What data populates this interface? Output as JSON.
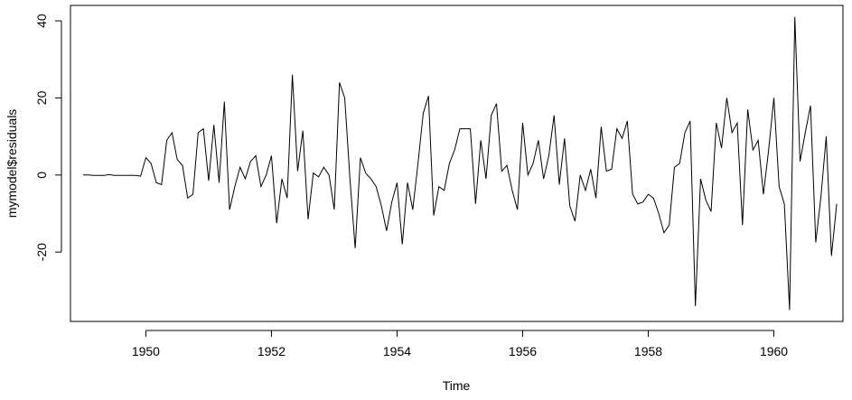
{
  "chart_data": {
    "type": "line",
    "title": "",
    "xlabel": "Time",
    "ylabel": "mymodel$residuals",
    "xlim": [
      1948.8,
      1961.1
    ],
    "ylim": [
      -38,
      44
    ],
    "x_ticks": [
      {
        "value": 1950,
        "label": "1950"
      },
      {
        "value": 1952,
        "label": "1952"
      },
      {
        "value": 1954,
        "label": "1954"
      },
      {
        "value": 1956,
        "label": "1956"
      },
      {
        "value": 1958,
        "label": "1958"
      },
      {
        "value": 1960,
        "label": "1960"
      }
    ],
    "y_ticks": [
      {
        "value": -20,
        "label": "-20"
      },
      {
        "value": 0,
        "label": "0"
      },
      {
        "value": 20,
        "label": "20"
      },
      {
        "value": 40,
        "label": "40"
      }
    ],
    "grid": false,
    "legend": "none",
    "line_color": "#000000",
    "series": [
      {
        "x_start": 1949,
        "frequency": 12,
        "values": [
          0.0,
          0.0,
          -0.1,
          -0.1,
          -0.1,
          0.1,
          -0.1,
          -0.1,
          -0.1,
          -0.1,
          -0.1,
          -0.3,
          4.5,
          3.0,
          -2.0,
          -2.5,
          9.0,
          11.0,
          4.0,
          2.5,
          -6.0,
          -5.0,
          11.0,
          12.0,
          -1.5,
          13.0,
          -2.0,
          19.0,
          -9.0,
          -3.0,
          2.0,
          -1.0,
          3.5,
          5.0,
          -3.0,
          0.0,
          5.0,
          -12.5,
          -1.0,
          -6.0,
          26.0,
          1.0,
          11.5,
          -11.5,
          0.5,
          -0.5,
          2.0,
          0.0,
          -9.0,
          24.0,
          20.0,
          -1.0,
          -19.0,
          4.5,
          0.5,
          -1.0,
          -3.0,
          -8.0,
          -14.5,
          -7.0,
          -2.0,
          -18.0,
          -2.0,
          -9.0,
          3.0,
          16.0,
          20.5,
          -10.5,
          -3.0,
          -4.0,
          3.0,
          6.5,
          12.0,
          12.0,
          12.0,
          -7.5,
          9.0,
          -1.0,
          15.5,
          18.5,
          1.0,
          2.5,
          -4.0,
          -9.0,
          13.5,
          0.0,
          3.0,
          9.0,
          -1.0,
          5.0,
          15.5,
          -2.5,
          9.5,
          -8.0,
          -12.0,
          0.0,
          -4.0,
          1.5,
          -6.0,
          12.5,
          1.0,
          1.5,
          12.0,
          9.5,
          14.0,
          -5.0,
          -7.5,
          -7.0,
          -5.0,
          -6.0,
          -10.0,
          -15.0,
          -13.0,
          2.0,
          3.0,
          11.0,
          14.0,
          -34.0,
          -1.0,
          -6.5,
          -9.5,
          13.5,
          7.0,
          20.0,
          11.0,
          13.5,
          -13.0,
          17.0,
          6.5,
          9.0,
          -5.0,
          6.5,
          20.0,
          -3.0,
          -7.5,
          -35.0,
          41.0,
          3.5,
          11.0,
          18.0,
          -17.5,
          -5.5,
          10.0,
          -21.0,
          -7.5
        ]
      }
    ]
  }
}
